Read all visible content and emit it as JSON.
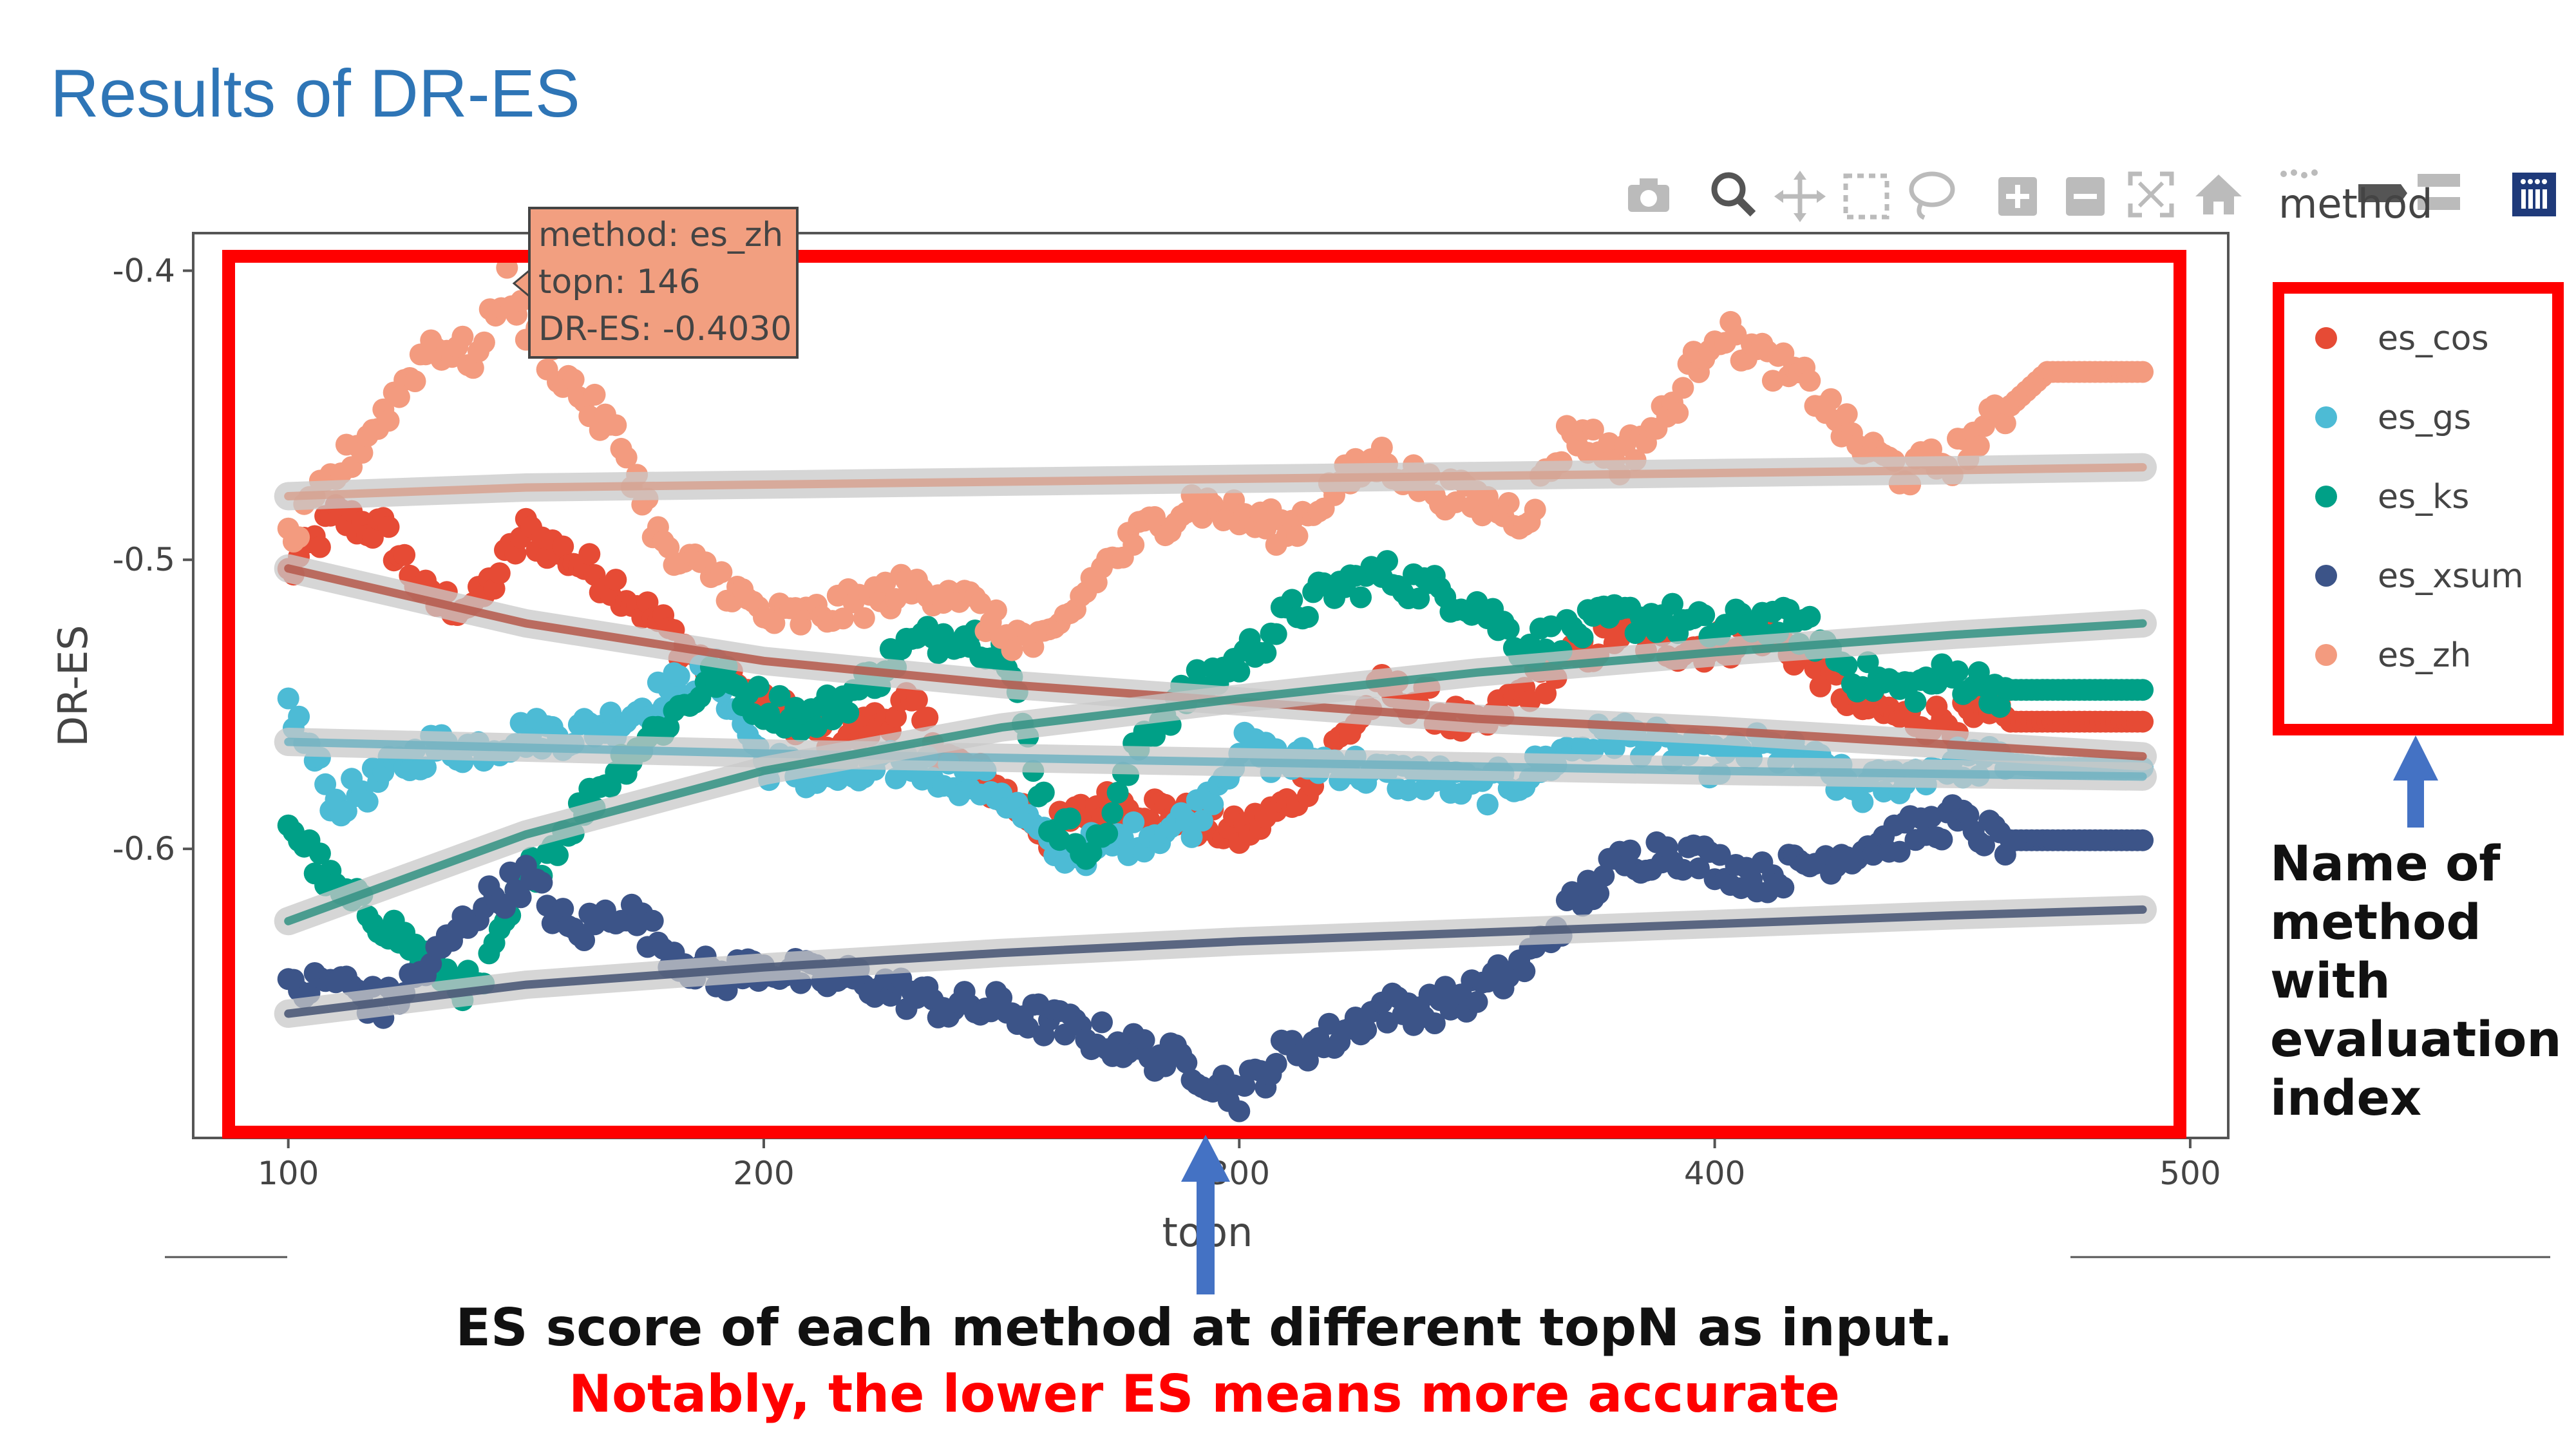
{
  "slide": {
    "title": "Results of DR-ES",
    "caption_line1": "ES score of each method at different topN as input.",
    "caption_line2": "Notably, the lower ES means more accurate",
    "side_note_lines": [
      "Name of",
      "method with",
      "evaluation",
      "index"
    ]
  },
  "toolbar": {
    "icons": [
      "camera-icon",
      "zoom-icon",
      "pan-icon",
      "box-select-icon",
      "lasso-select-icon",
      "zoom-in-icon",
      "zoom-out-icon",
      "autoscale-icon",
      "reset-axes-icon",
      "spike-lines-icon",
      "hover-closest-icon",
      "hover-compare-icon",
      "plotly-logo-icon"
    ]
  },
  "tooltip": {
    "line1": "method: es_zh",
    "line2": "topn: 146",
    "line3": "DR-ES: -0.4030",
    "color": "#f29f80"
  },
  "colors": {
    "es_cos": "#e64b35",
    "es_gs": "#4dbbd5",
    "es_ks": "#00a087",
    "es_xsum": "#3c5488",
    "es_zh": "#f39b7f",
    "annotation_box": "#ff0000",
    "arrow": "#4472c4"
  },
  "chart_data": {
    "type": "scatter",
    "title": "",
    "xlabel": "topn",
    "ylabel": "DR-ES",
    "xlim": [
      80,
      508
    ],
    "ylim": [
      -0.7,
      -0.387
    ],
    "xticks": [
      100,
      200,
      300,
      400,
      500
    ],
    "yticks": [
      -0.4,
      -0.5,
      -0.6
    ],
    "xtick_labels": [
      "100",
      "200",
      "300",
      "400",
      "500"
    ],
    "ytick_labels": [
      "-0.4",
      "-0.5",
      "-0.6"
    ],
    "grid": false,
    "legend_title": "method",
    "legend_position": "right",
    "series": [
      {
        "name": "es_cos",
        "color": "#e64b35",
        "x": [
          100,
          110,
          120,
          130,
          140,
          150,
          160,
          170,
          180,
          190,
          200,
          210,
          220,
          230,
          240,
          250,
          260,
          270,
          280,
          290,
          300,
          310,
          320,
          330,
          340,
          350,
          360,
          370,
          380,
          390,
          400,
          410,
          420,
          430,
          440,
          450,
          460,
          470,
          480,
          490
        ],
        "y": [
          -0.505,
          -0.485,
          -0.49,
          -0.515,
          -0.515,
          -0.49,
          -0.5,
          -0.51,
          -0.525,
          -0.54,
          -0.55,
          -0.56,
          -0.56,
          -0.55,
          -0.57,
          -0.58,
          -0.595,
          -0.585,
          -0.585,
          -0.59,
          -0.595,
          -0.585,
          -0.565,
          -0.545,
          -0.55,
          -0.56,
          -0.545,
          -0.535,
          -0.525,
          -0.53,
          -0.53,
          -0.525,
          -0.535,
          -0.55,
          -0.555,
          -0.555,
          -0.556,
          -0.556,
          -0.556,
          -0.556
        ],
        "trend": [
          [
            100,
            -0.503
          ],
          [
            150,
            -0.522
          ],
          [
            200,
            -0.535
          ],
          [
            250,
            -0.543
          ],
          [
            300,
            -0.549
          ],
          [
            350,
            -0.555
          ],
          [
            400,
            -0.559
          ],
          [
            450,
            -0.564
          ],
          [
            490,
            -0.568
          ]
        ]
      },
      {
        "name": "es_gs",
        "color": "#4dbbd5",
        "x": [
          100,
          110,
          120,
          130,
          140,
          150,
          160,
          170,
          180,
          190,
          200,
          210,
          220,
          230,
          240,
          250,
          260,
          270,
          280,
          290,
          300,
          310,
          320,
          330,
          340,
          350,
          360,
          370,
          380,
          390,
          400,
          410,
          420,
          430,
          440,
          450,
          460,
          470,
          480,
          490
        ],
        "y": [
          -0.55,
          -0.585,
          -0.575,
          -0.565,
          -0.565,
          -0.56,
          -0.56,
          -0.555,
          -0.545,
          -0.54,
          -0.57,
          -0.575,
          -0.575,
          -0.57,
          -0.575,
          -0.58,
          -0.6,
          -0.6,
          -0.595,
          -0.59,
          -0.565,
          -0.57,
          -0.57,
          -0.575,
          -0.575,
          -0.58,
          -0.575,
          -0.565,
          -0.56,
          -0.565,
          -0.57,
          -0.565,
          -0.57,
          -0.58,
          -0.575,
          -0.57,
          -0.57,
          -0.572,
          -0.572,
          -0.572
        ],
        "trend": [
          [
            100,
            -0.563
          ],
          [
            200,
            -0.567
          ],
          [
            300,
            -0.57
          ],
          [
            400,
            -0.573
          ],
          [
            490,
            -0.575
          ]
        ]
      },
      {
        "name": "es_ks",
        "color": "#00a087",
        "x": [
          100,
          110,
          120,
          130,
          140,
          150,
          160,
          170,
          180,
          190,
          200,
          210,
          220,
          230,
          240,
          250,
          260,
          270,
          280,
          290,
          300,
          310,
          320,
          330,
          340,
          350,
          360,
          370,
          380,
          390,
          400,
          410,
          420,
          430,
          440,
          450,
          460,
          470,
          480,
          490
        ],
        "y": [
          -0.59,
          -0.615,
          -0.625,
          -0.64,
          -0.65,
          -0.61,
          -0.59,
          -0.57,
          -0.555,
          -0.54,
          -0.55,
          -0.555,
          -0.545,
          -0.53,
          -0.525,
          -0.53,
          -0.59,
          -0.6,
          -0.56,
          -0.545,
          -0.535,
          -0.52,
          -0.51,
          -0.505,
          -0.51,
          -0.515,
          -0.53,
          -0.525,
          -0.52,
          -0.52,
          -0.525,
          -0.52,
          -0.525,
          -0.54,
          -0.545,
          -0.54,
          -0.545,
          -0.545,
          -0.545,
          -0.545
        ],
        "trend": [
          [
            100,
            -0.625
          ],
          [
            150,
            -0.595
          ],
          [
            200,
            -0.573
          ],
          [
            250,
            -0.558
          ],
          [
            300,
            -0.548
          ],
          [
            350,
            -0.539
          ],
          [
            400,
            -0.532
          ],
          [
            450,
            -0.526
          ],
          [
            490,
            -0.522
          ]
        ]
      },
      {
        "name": "es_xsum",
        "color": "#3c5488",
        "x": [
          100,
          110,
          120,
          130,
          140,
          150,
          160,
          170,
          180,
          190,
          200,
          210,
          220,
          230,
          240,
          250,
          260,
          270,
          280,
          290,
          300,
          310,
          320,
          330,
          340,
          350,
          360,
          370,
          380,
          390,
          400,
          410,
          420,
          430,
          440,
          450,
          460,
          470,
          480,
          490
        ],
        "y": [
          -0.65,
          -0.645,
          -0.655,
          -0.64,
          -0.62,
          -0.61,
          -0.63,
          -0.62,
          -0.635,
          -0.645,
          -0.64,
          -0.645,
          -0.645,
          -0.65,
          -0.655,
          -0.655,
          -0.66,
          -0.665,
          -0.67,
          -0.675,
          -0.685,
          -0.67,
          -0.665,
          -0.655,
          -0.655,
          -0.65,
          -0.64,
          -0.62,
          -0.605,
          -0.6,
          -0.605,
          -0.61,
          -0.605,
          -0.6,
          -0.595,
          -0.59,
          -0.597,
          -0.597,
          -0.597,
          -0.597
        ],
        "trend": [
          [
            100,
            -0.657
          ],
          [
            150,
            -0.647
          ],
          [
            200,
            -0.641
          ],
          [
            250,
            -0.636
          ],
          [
            300,
            -0.632
          ],
          [
            350,
            -0.629
          ],
          [
            400,
            -0.626
          ],
          [
            450,
            -0.623
          ],
          [
            490,
            -0.621
          ]
        ]
      },
      {
        "name": "es_zh",
        "color": "#f39b7f",
        "x": [
          100,
          110,
          120,
          130,
          140,
          146,
          150,
          160,
          170,
          180,
          190,
          200,
          210,
          220,
          230,
          240,
          250,
          260,
          270,
          280,
          290,
          300,
          310,
          320,
          330,
          340,
          350,
          360,
          370,
          380,
          390,
          400,
          410,
          420,
          430,
          440,
          450,
          460,
          470,
          480,
          490
        ],
        "y": [
          -0.495,
          -0.47,
          -0.45,
          -0.425,
          -0.43,
          -0.403,
          -0.42,
          -0.44,
          -0.46,
          -0.5,
          -0.505,
          -0.52,
          -0.52,
          -0.515,
          -0.51,
          -0.51,
          -0.525,
          -0.53,
          -0.505,
          -0.49,
          -0.48,
          -0.485,
          -0.49,
          -0.475,
          -0.465,
          -0.475,
          -0.48,
          -0.485,
          -0.455,
          -0.465,
          -0.45,
          -0.42,
          -0.43,
          -0.44,
          -0.46,
          -0.47,
          -0.465,
          -0.45,
          -0.435,
          -0.435,
          -0.435
        ],
        "trend": [
          [
            100,
            -0.478
          ],
          [
            150,
            -0.475
          ],
          [
            200,
            -0.474
          ],
          [
            250,
            -0.473
          ],
          [
            300,
            -0.472
          ],
          [
            350,
            -0.471
          ],
          [
            400,
            -0.47
          ],
          [
            450,
            -0.469
          ],
          [
            490,
            -0.468
          ]
        ]
      }
    ]
  }
}
